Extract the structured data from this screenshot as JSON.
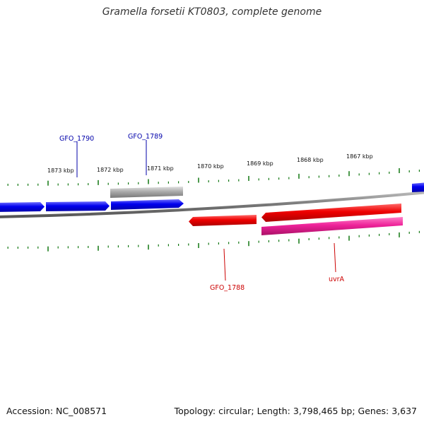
{
  "title": "Gramella forsetii KT0803, complete genome",
  "footer": {
    "accession": "Accession: NC_008571",
    "stats": "Topology: circular; Length: 3,798,465 bp; Genes: 3,637"
  },
  "colors": {
    "forward_gene": "#0000ee",
    "reverse_gene": "#ee0000",
    "rrna_pink": "#ee2299",
    "grey_feature": "#aaaaaa",
    "backbone": "#888888",
    "tick": "#117711",
    "label_blue": "#0000aa",
    "label_red": "#cc0000"
  },
  "ruler_labels": [
    "1873 kbp",
    "1872 kbp",
    "1871 kbp",
    "1870 kbp",
    "1869 kbp",
    "1868 kbp",
    "1867 kbp"
  ],
  "gene_labels": {
    "gfo_1790": "GFO_1790",
    "gfo_1789": "GFO_1789",
    "gfo_1788": "GFO_1788",
    "uvra": "uvrA"
  }
}
